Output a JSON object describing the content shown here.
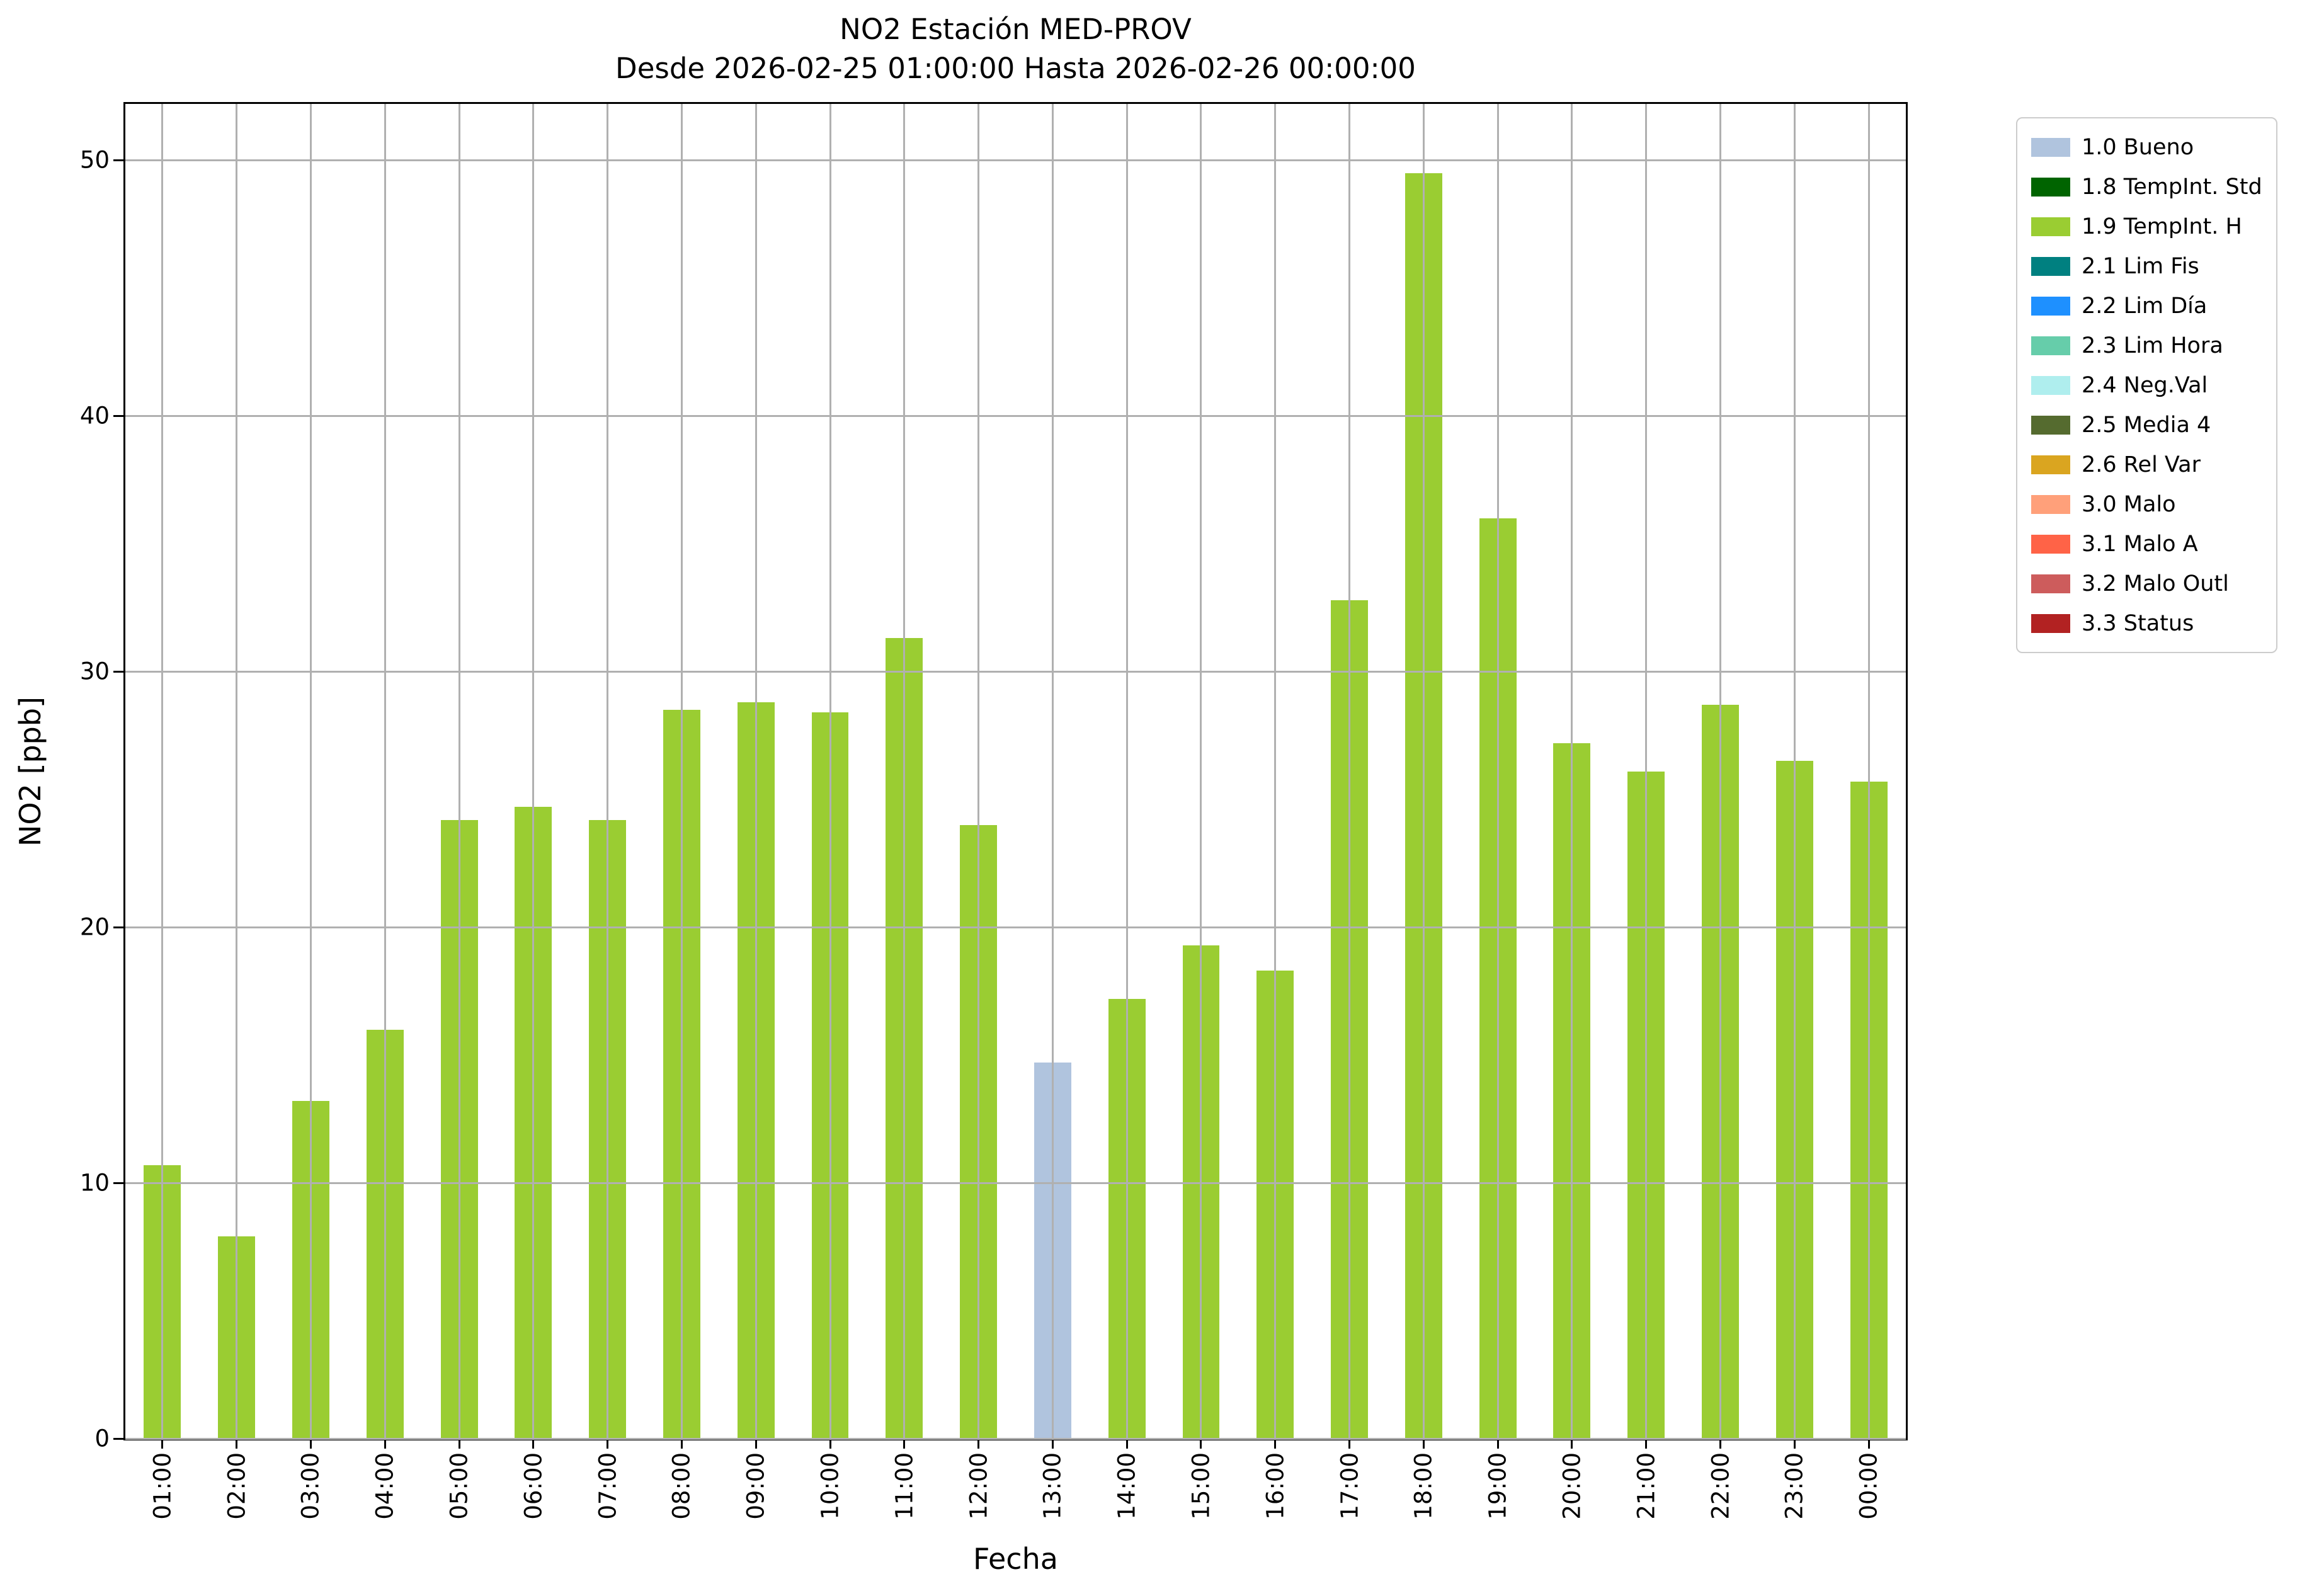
{
  "chart_data": {
    "type": "bar",
    "title": "NO2 Estación MED-PROV",
    "subtitle": "Desde 2026-02-25 01:00:00 Hasta 2026-02-26 00:00:00",
    "xlabel": "Fecha",
    "ylabel": "NO2 [ppb]",
    "ylim": [
      0,
      52.2
    ],
    "yticks": [
      0,
      10,
      20,
      30,
      40,
      50
    ],
    "grid": true,
    "legend_position": "outside-upper-right",
    "categories": [
      "01:00",
      "02:00",
      "03:00",
      "04:00",
      "05:00",
      "06:00",
      "07:00",
      "08:00",
      "09:00",
      "10:00",
      "11:00",
      "12:00",
      "13:00",
      "14:00",
      "15:00",
      "16:00",
      "17:00",
      "18:00",
      "19:00",
      "20:00",
      "21:00",
      "22:00",
      "23:00",
      "00:00"
    ],
    "values": [
      10.7,
      7.9,
      13.2,
      16.0,
      24.2,
      24.7,
      24.2,
      28.5,
      28.8,
      28.4,
      31.3,
      24.0,
      14.7,
      17.2,
      19.3,
      18.3,
      32.8,
      49.5,
      36.0,
      27.2,
      26.1,
      28.7,
      26.5,
      25.7
    ],
    "flags": [
      "1.9",
      "1.9",
      "1.9",
      "1.9",
      "1.9",
      "1.9",
      "1.9",
      "1.9",
      "1.9",
      "1.9",
      "1.9",
      "1.9",
      "1.0",
      "1.9",
      "1.9",
      "1.9",
      "1.9",
      "1.9",
      "1.9",
      "1.9",
      "1.9",
      "1.9",
      "1.9",
      "1.9"
    ],
    "legend": [
      {
        "label": "1.0 Bueno",
        "color": "#b0c4de"
      },
      {
        "label": "1.8 TempInt. Std",
        "color": "#006400"
      },
      {
        "label": "1.9 TempInt. H",
        "color": "#9acd32"
      },
      {
        "label": "2.1 Lim Fis",
        "color": "#008080"
      },
      {
        "label": "2.2 Lim Día",
        "color": "#1e90ff"
      },
      {
        "label": "2.3 Lim Hora",
        "color": "#66cdaa"
      },
      {
        "label": "2.4 Neg.Val",
        "color": "#afeeee"
      },
      {
        "label": "2.5 Media 4",
        "color": "#556b2f"
      },
      {
        "label": "2.6 Rel Var",
        "color": "#daa520"
      },
      {
        "label": "3.0 Malo",
        "color": "#ffa07a"
      },
      {
        "label": "3.1 Malo A",
        "color": "#ff6347"
      },
      {
        "label": "3.2 Malo Outl",
        "color": "#cd5c5c"
      },
      {
        "label": "3.3 Status",
        "color": "#b22222"
      }
    ]
  }
}
